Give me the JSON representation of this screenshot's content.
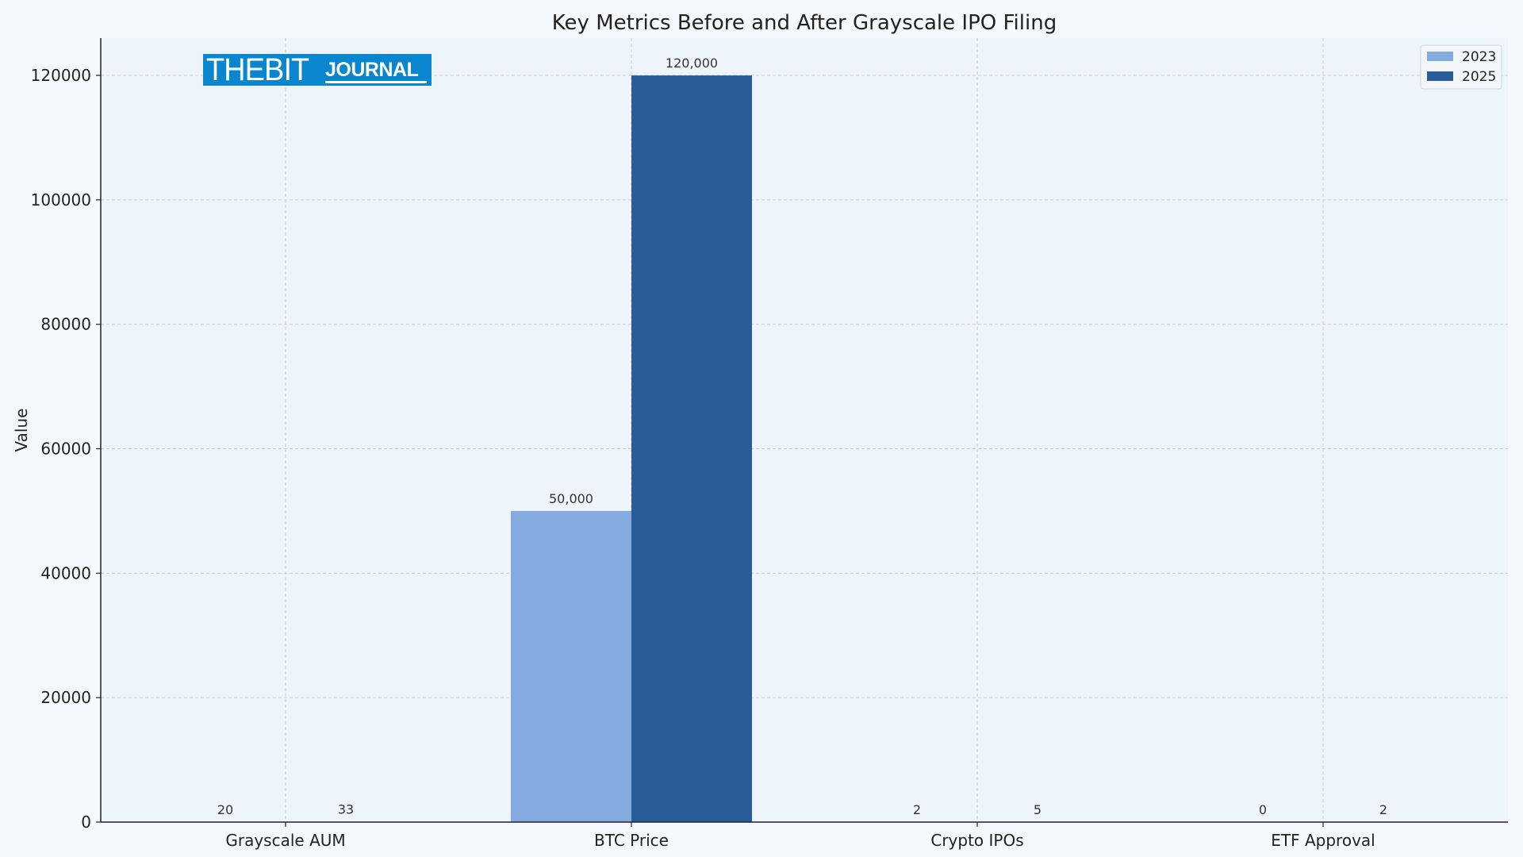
{
  "chart_data": {
    "type": "bar",
    "title": "Key Metrics Before and After Grayscale IPO Filing",
    "xlabel": "",
    "ylabel": "Value",
    "categories": [
      "Grayscale AUM",
      "BTC Price",
      "Crypto IPOs",
      "ETF Approval"
    ],
    "series": [
      {
        "name": "2023",
        "values": [
          20,
          50000,
          2,
          0
        ],
        "labels": [
          "20",
          "50,000",
          "2",
          "0"
        ],
        "color": "#84abe0"
      },
      {
        "name": "2025",
        "values": [
          33,
          120000,
          5,
          2
        ],
        "labels": [
          "33",
          "120,000",
          "5",
          "2"
        ],
        "color": "#2b5c9a"
      }
    ],
    "ylim": [
      0,
      126000
    ],
    "yticks": [
      0,
      20000,
      40000,
      60000,
      80000,
      100000,
      120000
    ],
    "ytick_labels": [
      "0",
      "20000",
      "40000",
      "60000",
      "80000",
      "100000",
      "120000"
    ],
    "grid": true,
    "legend_position": "top-right"
  },
  "watermark": {
    "text_primary": "THEBIT",
    "text_secondary": "JOURNAL",
    "color": "#0a86cf"
  },
  "colors": {
    "background": "#f5f8fc",
    "plot_background": "#eef5fa",
    "grid": "#c5ccd3",
    "axis": "#222222"
  }
}
